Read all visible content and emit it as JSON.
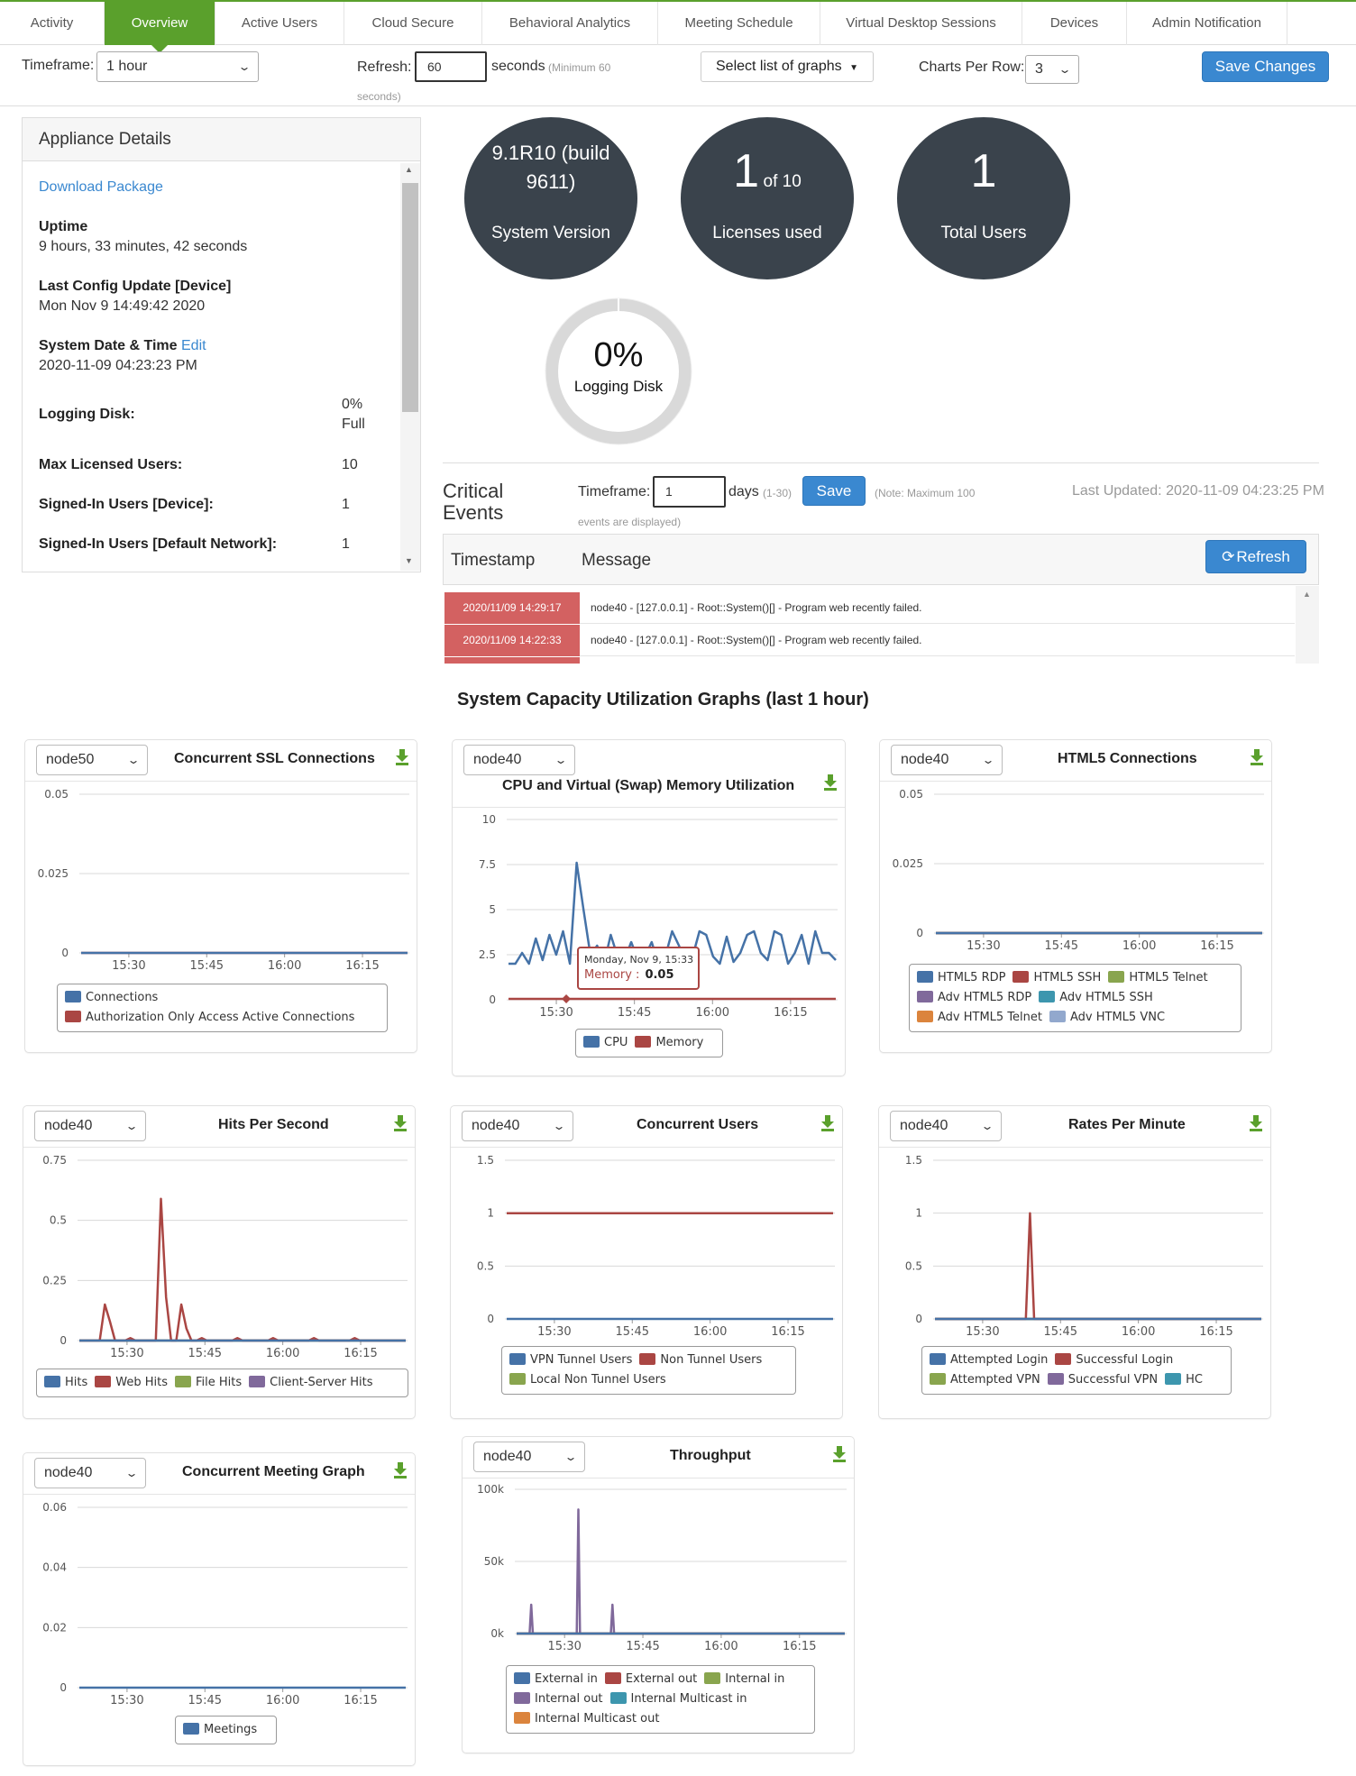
{
  "tabs": [
    {
      "label": "Activity",
      "active": false
    },
    {
      "label": "Overview",
      "active": true
    },
    {
      "label": "Active Users",
      "active": false
    },
    {
      "label": "Cloud Secure",
      "active": false
    },
    {
      "label": "Behavioral Analytics",
      "active": false
    },
    {
      "label": "Meeting Schedule",
      "active": false
    },
    {
      "label": "Virtual Desktop Sessions",
      "active": false
    },
    {
      "label": "Devices",
      "active": false
    },
    {
      "label": "Admin Notification",
      "active": false
    }
  ],
  "toolbar": {
    "timeframe_label": "Timeframe:",
    "timeframe_value": "1 hour",
    "refresh_label": "Refresh:",
    "refresh_value": "60",
    "seconds_label": "seconds",
    "min_note": "(Minimum 60",
    "min_note2": "seconds)",
    "graphs_button": "Select list of graphs",
    "charts_per_row_label": "Charts Per Row:",
    "charts_per_row_value": "3",
    "save_button": "Save Changes"
  },
  "appliance": {
    "title": "Appliance Details",
    "download_link": "Download Package",
    "uptime_label": "Uptime",
    "uptime_value": "9 hours, 33 minutes, 42 seconds",
    "config_label": "Last Config Update [Device]",
    "config_value": "Mon Nov 9 14:49:42 2020",
    "date_label": "System Date & Time",
    "date_edit": "Edit",
    "date_value": "2020-11-09 04:23:23 PM",
    "logging_label": "Logging Disk:",
    "logging_value": "0%",
    "logging_value2": "Full",
    "max_label": "Max Licensed Users:",
    "max_value": "10",
    "signed_dev_label": "Signed-In Users [Device]:",
    "signed_dev_value": "1",
    "signed_net_label": "Signed-In Users [Default Network]:",
    "signed_net_value": "1"
  },
  "stats": {
    "version_line1": "9.1R10 (build",
    "version_line2": "9611)",
    "version_label": "System Version",
    "licenses_big": "1",
    "licenses_of": "of 10",
    "licenses_label": "Licenses used",
    "users_big": "1",
    "users_label": "Total Users",
    "disk_pct": "0%",
    "disk_label": "Logging Disk",
    "disk_fraction": 0
  },
  "events": {
    "title_line1": "Critical",
    "title_line2": "Events",
    "timeframe_label": "Timeframe:",
    "timeframe_value": "1",
    "days_label": "days",
    "range_note": "(1-30)",
    "save_button": "Save",
    "note": "(Note: Maximum 100",
    "note2": "events are displayed)",
    "last_updated": "Last Updated: 2020-11-09 04:23:25 PM",
    "col_timestamp": "Timestamp",
    "col_message": "Message",
    "refresh_button": "Refresh",
    "rows": [
      {
        "ts": "2020/11/09 14:29:17",
        "msg": "node40 - [127.0.0.1] - Root::System()[] - Program web recently failed."
      },
      {
        "ts": "2020/11/09 14:22:33",
        "msg": "node40 - [127.0.0.1] - Root::System()[] - Program web recently failed."
      }
    ]
  },
  "graphs_title": "System Capacity Utilization Graphs (last 1 hour)",
  "colors": {
    "blue": "#4572a7",
    "red": "#aa4643",
    "green": "#89a54e",
    "purple": "#80699b",
    "teal": "#3d96ae",
    "orange": "#db843d",
    "lightblue": "#92a8cd",
    "accent": "#5aa02c"
  },
  "chart_data": [
    {
      "id": "ssl",
      "node": "node50",
      "type": "line",
      "title": "Concurrent SSL Connections",
      "ylim": [
        0,
        0.05
      ],
      "yticks": [
        "0",
        "0.025",
        "0.05"
      ],
      "xticks": [
        "15:30",
        "15:45",
        "16:00",
        "16:15"
      ],
      "series": [
        {
          "name": "Connections",
          "color": "#4572a7",
          "values": [
            0,
            0
          ]
        },
        {
          "name": "Authorization Only Access Active Connections",
          "color": "#aa4643",
          "values": [
            0,
            0
          ]
        }
      ]
    },
    {
      "id": "cpu",
      "node": "node40",
      "type": "line",
      "title": "CPU and Virtual (Swap) Memory Utilization",
      "ylim": [
        0,
        10
      ],
      "yticks": [
        "0",
        "2.5",
        "5",
        "7.5",
        "10"
      ],
      "xticks": [
        "15:30",
        "15:45",
        "16:00",
        "16:15"
      ],
      "tooltip": {
        "title": "Monday, Nov 9, 15:33",
        "label": "Memory :",
        "value": "0.05"
      },
      "series": [
        {
          "name": "CPU",
          "color": "#4572a7",
          "values": [
            2,
            2,
            2.6,
            2,
            3.4,
            2.2,
            3.6,
            2.5,
            3.8,
            2,
            7.6,
            5,
            2.5,
            3,
            2,
            3.6,
            2.4,
            2.2,
            3.2,
            2.2,
            2.4,
            3.2,
            2,
            2.4,
            3.8,
            3,
            2,
            2.4,
            3.8,
            3.6,
            2.4,
            2,
            3.5,
            2.1,
            2.6,
            3.6,
            3.8,
            2.6,
            2.2,
            3.8,
            3.6,
            2,
            2.6,
            3.6,
            2,
            3.8,
            2.6,
            2.6,
            2.2
          ]
        },
        {
          "name": "Memory",
          "color": "#aa4643",
          "values": [
            0.05,
            0.05
          ]
        }
      ]
    },
    {
      "id": "html5",
      "node": "node40",
      "type": "line",
      "title": "HTML5 Connections",
      "ylim": [
        0,
        0.05
      ],
      "yticks": [
        "0",
        "0.025",
        "0.05"
      ],
      "xticks": [
        "15:30",
        "15:45",
        "16:00",
        "16:15"
      ],
      "series": [
        {
          "name": "HTML5 RDP",
          "color": "#4572a7",
          "values": [
            0,
            0
          ]
        },
        {
          "name": "HTML5 SSH",
          "color": "#aa4643",
          "values": [
            0,
            0
          ]
        },
        {
          "name": "HTML5 Telnet",
          "color": "#89a54e",
          "values": [
            0,
            0
          ]
        },
        {
          "name": "Adv HTML5 RDP",
          "color": "#80699b",
          "values": [
            0,
            0
          ]
        },
        {
          "name": "Adv HTML5 SSH",
          "color": "#3d96ae",
          "values": [
            0,
            0
          ]
        },
        {
          "name": "Adv HTML5 Telnet",
          "color": "#db843d",
          "values": [
            0,
            0
          ]
        },
        {
          "name": "Adv HTML5 VNC",
          "color": "#92a8cd",
          "values": [
            0,
            0
          ]
        }
      ]
    },
    {
      "id": "hits",
      "node": "node40",
      "type": "line",
      "title": "Hits Per Second",
      "ylim": [
        0,
        0.75
      ],
      "yticks": [
        "0",
        "0.25",
        "0.5",
        "0.75"
      ],
      "xticks": [
        "15:30",
        "15:45",
        "16:00",
        "16:15"
      ],
      "series": [
        {
          "name": "Hits",
          "color": "#4572a7",
          "values": [
            0,
            0
          ]
        },
        {
          "name": "Web Hits",
          "color": "#aa4643",
          "values": [
            0,
            0,
            0,
            0,
            0,
            0.15,
            0.08,
            0,
            0,
            0,
            0.01,
            0,
            0,
            0,
            0,
            0,
            0.59,
            0.18,
            0,
            0,
            0.15,
            0.05,
            0,
            0,
            0.01,
            0,
            0,
            0,
            0,
            0,
            0,
            0.01,
            0,
            0,
            0,
            0,
            0,
            0,
            0.01,
            0,
            0,
            0,
            0,
            0,
            0,
            0,
            0.01,
            0,
            0,
            0,
            0,
            0,
            0,
            0,
            0.01,
            0,
            0,
            0,
            0,
            0,
            0,
            0,
            0,
            0,
            0
          ]
        },
        {
          "name": "File Hits",
          "color": "#89a54e",
          "values": [
            0,
            0
          ]
        },
        {
          "name": "Client-Server Hits",
          "color": "#80699b",
          "values": [
            0,
            0
          ]
        }
      ]
    },
    {
      "id": "users",
      "node": "node40",
      "type": "line",
      "title": "Concurrent Users",
      "ylim": [
        0,
        1.5
      ],
      "yticks": [
        "0",
        "0.5",
        "1",
        "1.5"
      ],
      "xticks": [
        "15:30",
        "15:45",
        "16:00",
        "16:15"
      ],
      "series": [
        {
          "name": "VPN Tunnel Users",
          "color": "#4572a7",
          "values": [
            0,
            0
          ]
        },
        {
          "name": "Non Tunnel Users",
          "color": "#aa4643",
          "values": [
            1,
            1
          ]
        },
        {
          "name": "Local Non Tunnel Users",
          "color": "#89a54e",
          "values": [
            1,
            1
          ]
        }
      ]
    },
    {
      "id": "rates",
      "node": "node40",
      "type": "line",
      "title": "Rates Per Minute",
      "ylim": [
        0,
        1.5
      ],
      "yticks": [
        "0",
        "0.5",
        "1",
        "1.5"
      ],
      "xticks": [
        "15:30",
        "15:45",
        "16:00",
        "16:15"
      ],
      "series": [
        {
          "name": "Attempted Login",
          "color": "#4572a7",
          "values": [
            0,
            0
          ]
        },
        {
          "name": "Successful Login",
          "color": "#aa4643",
          "values": [
            0,
            0,
            0,
            0,
            0,
            0,
            0,
            0,
            0,
            0,
            0,
            0,
            0,
            0,
            0,
            0,
            0,
            0,
            0,
            0,
            0,
            0,
            0,
            1,
            0,
            0,
            0,
            0,
            0,
            0,
            0,
            0,
            0,
            0,
            0,
            0,
            0,
            0,
            0,
            0,
            0,
            0,
            0,
            0,
            0,
            0,
            0,
            0,
            0,
            0,
            0,
            0,
            0,
            0,
            0,
            0,
            0,
            0,
            0,
            0,
            0,
            0,
            0,
            0,
            0,
            0,
            0,
            0,
            0,
            0,
            0,
            0,
            0,
            0,
            0,
            0,
            0,
            0,
            0,
            0
          ]
        },
        {
          "name": "Attempted VPN",
          "color": "#89a54e",
          "values": [
            0,
            0
          ]
        },
        {
          "name": "Successful VPN",
          "color": "#80699b",
          "values": [
            0,
            0
          ]
        },
        {
          "name": "HC",
          "color": "#3d96ae",
          "values": [
            0,
            0
          ]
        }
      ]
    },
    {
      "id": "meeting",
      "node": "node40",
      "type": "line",
      "title": "Concurrent Meeting Graph",
      "ylim": [
        0,
        0.06
      ],
      "yticks": [
        "0",
        "0.02",
        "0.04",
        "0.06"
      ],
      "xticks": [
        "15:30",
        "15:45",
        "16:00",
        "16:15"
      ],
      "series": [
        {
          "name": "Meetings",
          "color": "#4572a7",
          "values": [
            0,
            0
          ]
        }
      ]
    },
    {
      "id": "throughput",
      "node": "node40",
      "type": "line",
      "title": "Throughput",
      "ylim": [
        0,
        100000
      ],
      "yticks": [
        "0k",
        "50k",
        "100k"
      ],
      "xticks": [
        "15:30",
        "15:45",
        "16:00",
        "16:15"
      ],
      "series": [
        {
          "name": "External in",
          "color": "#4572a7",
          "values": [
            0,
            0
          ]
        },
        {
          "name": "External out",
          "color": "#aa4643",
          "values": [
            0,
            0
          ]
        },
        {
          "name": "Internal in",
          "color": "#89a54e",
          "values": [
            0,
            0
          ]
        },
        {
          "name": "Internal out",
          "color": "#80699b",
          "values": [
            0,
            0,
            0,
            0,
            0,
            0,
            0,
            0,
            0,
            20000,
            0,
            0,
            0,
            0,
            0,
            0,
            0,
            0,
            0,
            0,
            0,
            0,
            0,
            0,
            0,
            0,
            0,
            0,
            0,
            0,
            0,
            0,
            0,
            0,
            0,
            0,
            0,
            0,
            86000,
            0,
            0,
            0,
            0,
            0,
            0,
            0,
            0,
            0,
            0,
            0,
            0,
            0,
            0,
            0,
            0,
            0,
            0,
            0,
            0,
            20000,
            0,
            0,
            0,
            0,
            0,
            0,
            0,
            0,
            0,
            0,
            0,
            0,
            0,
            0,
            0,
            0,
            0,
            0,
            0,
            0,
            0,
            0,
            0,
            0,
            0,
            0,
            0,
            0,
            0,
            0,
            0,
            0,
            0,
            0,
            0,
            0,
            0,
            0,
            0,
            0,
            0,
            0,
            0,
            0,
            0,
            0,
            0,
            0,
            0,
            0,
            0,
            0,
            0,
            0,
            0,
            0,
            0,
            0,
            0,
            0,
            0,
            0,
            0,
            0,
            0,
            0,
            0,
            0,
            0,
            0,
            0,
            0,
            0,
            0,
            0,
            0,
            0,
            0,
            0,
            0,
            0,
            0,
            0,
            0,
            0,
            0,
            0,
            0,
            0,
            0,
            0,
            0,
            0,
            0,
            0,
            0,
            0,
            0,
            0,
            0,
            0,
            0,
            0,
            0,
            0,
            0,
            0,
            0,
            0,
            0,
            0,
            0,
            0,
            0,
            0,
            0,
            0,
            0,
            0,
            0,
            0,
            0,
            0,
            0,
            0,
            0,
            0,
            0,
            0,
            0,
            0,
            0,
            0,
            0,
            0,
            0,
            0,
            0,
            0,
            0,
            0,
            0,
            0
          ]
        },
        {
          "name": "Internal Multicast in",
          "color": "#3d96ae",
          "values": [
            0,
            0
          ]
        },
        {
          "name": "Internal Multicast out",
          "color": "#db843d",
          "values": [
            0,
            0
          ]
        }
      ]
    }
  ]
}
